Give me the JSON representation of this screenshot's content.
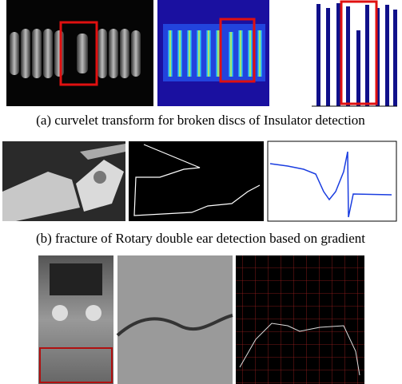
{
  "captions": [
    "(a) curvelet transform for broken discs of Insulator detection",
    "(b) fracture of Rotary double ear detection based on gradient"
  ]
}
